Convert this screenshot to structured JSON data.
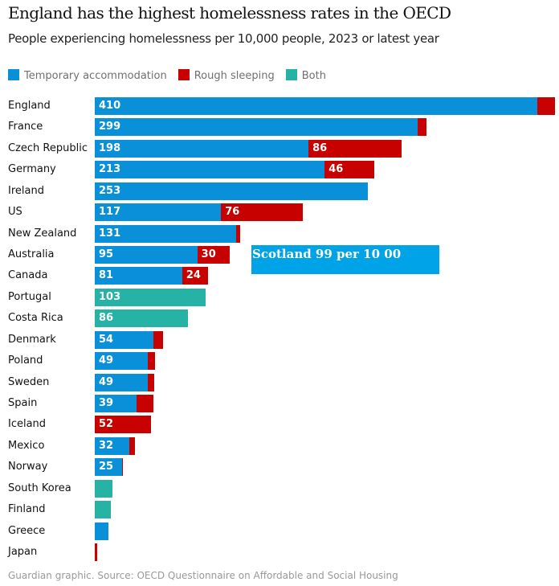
{
  "chart_data": {
    "type": "bar",
    "orientation": "horizontal",
    "stacked": true,
    "title": "England has the highest homelessness rates in the OECD",
    "subtitle": "People experiencing homelessness per 10,000 people, 2023 or latest year",
    "legend": [
      {
        "name": "Temporary accommodation",
        "color": "#0a90d8"
      },
      {
        "name": "Rough sleeping",
        "color": "#c70000"
      },
      {
        "name": "Both",
        "color": "#26b3a6"
      }
    ],
    "legend_position": "top-left",
    "grid": false,
    "xlim": [
      0,
      430
    ],
    "categories": [
      "England",
      "France",
      "Czech Republic",
      "Germany",
      "Ireland",
      "US",
      "New Zealand",
      "Australia",
      "Canada",
      "Portugal",
      "Costa Rica",
      "Denmark",
      "Poland",
      "Sweden",
      "Spain",
      "Iceland",
      "Mexico",
      "Norway",
      "South Korea",
      "Finland",
      "Greece",
      "Japan"
    ],
    "series": [
      {
        "name": "Temporary accommodation",
        "values": [
          410,
          299,
          198,
          213,
          253,
          117,
          131,
          95,
          81,
          0,
          0,
          54,
          49,
          49,
          39,
          0,
          32,
          25,
          0,
          0,
          13,
          0
        ],
        "labels": [
          "410",
          "299",
          "198",
          "213",
          "253",
          "117",
          "131",
          "95",
          "81",
          "",
          "",
          "54",
          "49",
          "49",
          "39",
          "",
          "32",
          "25",
          "",
          "",
          "",
          ""
        ]
      },
      {
        "name": "Rough sleeping",
        "values": [
          16,
          8,
          86,
          46,
          0,
          76,
          4,
          30,
          24,
          0,
          0,
          9,
          7,
          6,
          15,
          52,
          5,
          1,
          0,
          0,
          0,
          2
        ],
        "labels": [
          "",
          "",
          "86",
          "46",
          "",
          "76",
          "",
          "30",
          "24",
          "",
          "",
          "",
          "",
          "",
          "",
          "52",
          "",
          "",
          "",
          "",
          "",
          ""
        ]
      },
      {
        "name": "Both",
        "values": [
          0,
          0,
          0,
          0,
          0,
          0,
          0,
          0,
          0,
          103,
          86,
          0,
          0,
          0,
          0,
          0,
          0,
          0,
          16,
          15,
          0,
          0
        ],
        "labels": [
          "",
          "",
          "",
          "",
          "",
          "",
          "",
          "",
          "",
          "103",
          "86",
          "",
          "",
          "",
          "",
          "",
          "",
          "",
          "",
          "",
          "",
          ""
        ]
      }
    ],
    "annotation": "Scotland 99 per 10 00",
    "source": "Guardian graphic. Source: OECD Questionnaire on Affordable and Social Housing"
  }
}
